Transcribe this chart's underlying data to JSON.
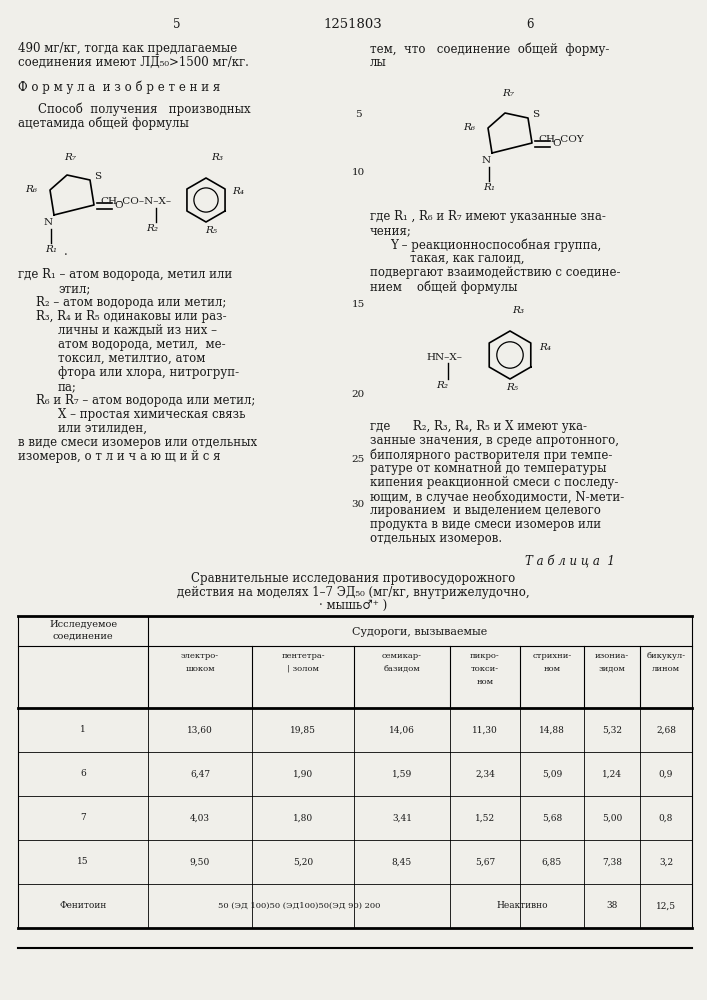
{
  "page_number_left": "5",
  "page_number_center": "1251803",
  "page_number_right": "6",
  "bg_color": "#f0efea",
  "text_color": "#1a1a1a",
  "font_size_main": 8.5,
  "font_size_small": 7.5,
  "table_title": "Т а б л и ц а  1",
  "table_subtitle1": "Сравнительные исследования противосудорожного",
  "table_subtitle2": "действия на моделях 1–7 ЭД₅₀ (мг/кг, внутрижелудочно,",
  "table_subtitle3": "· мышь♂⁺ )",
  "rows": [
    [
      "1",
      "13,60",
      "19,85",
      "14,06",
      "11,30",
      "14,88",
      "5,32",
      "2,68"
    ],
    [
      "6",
      "6,47",
      "1,90",
      "1,59",
      "2,34",
      "5,09",
      "1,24",
      "0,9"
    ],
    [
      "7",
      "4,03",
      "1,80",
      "3,41",
      "1,52",
      "5,68",
      "5,00",
      "0,8"
    ],
    [
      "15",
      "9,50",
      "5,20",
      "8,45",
      "5,67",
      "6,85",
      "7,38",
      "3,2"
    ],
    [
      "Фенитоин",
      "50 (ЭД 100)50 (ЭД100)50(ЭД 90) 200",
      "",
      "",
      "",
      "Неактивно",
      "38",
      "12,5"
    ]
  ]
}
